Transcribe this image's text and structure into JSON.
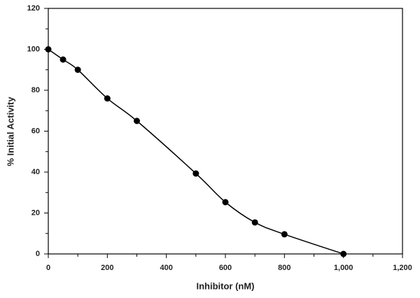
{
  "chart_data": {
    "type": "line",
    "markers": true,
    "smooth": true,
    "color": "#000000",
    "x_label": "Inhibitor (nM)",
    "y_label": "% Initial Activity",
    "x": [
      0,
      50,
      100,
      200,
      300,
      500,
      600,
      700,
      800,
      1000
    ],
    "y": [
      100,
      95,
      90,
      76,
      65,
      39.3,
      25.3,
      15.4,
      9.6,
      0
    ],
    "xlim": [
      0,
      1200
    ],
    "ylim": [
      0,
      120
    ],
    "xticks": [
      0,
      200,
      400,
      600,
      800,
      {
        "value": 1000,
        "label": "1,000"
      },
      {
        "value": 1200,
        "label": "1,200"
      }
    ],
    "xminorticks": [
      100,
      300,
      500,
      700,
      900,
      1100
    ],
    "yticks": [
      0,
      20,
      40,
      60,
      80,
      100,
      120
    ],
    "yminorticks": [
      10,
      30,
      50,
      70,
      90,
      110
    ],
    "grid": false
  }
}
